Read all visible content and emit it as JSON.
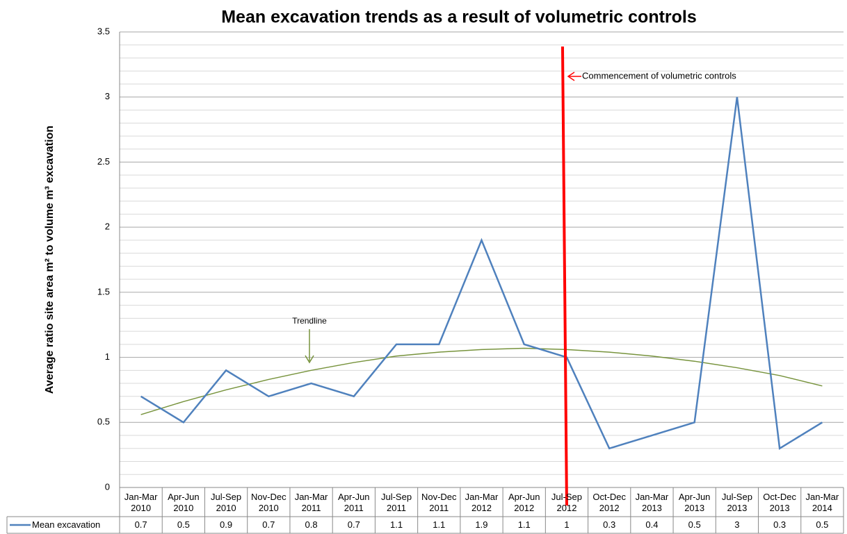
{
  "chart_data": {
    "type": "line",
    "title": "Mean excavation trends as a result of volumetric controls",
    "y_label": "Average ratio site area m² to volume m³ excavation",
    "categories": [
      "Jan-Mar 2010",
      "Apr-Jun 2010",
      "Jul-Sep 2010",
      "Nov-Dec 2010",
      "Jan-Mar 2011",
      "Apr-Jun 2011",
      "Jul-Sep 2011",
      "Nov-Dec 2011",
      "Jan-Mar 2012",
      "Apr-Jun 2012",
      "Jul-Sep 2012",
      "Oct-Dec 2012",
      "Jan-Mar 2013",
      "Apr-Jun 2013",
      "Jul-Sep 2013",
      "Oct-Dec 2013",
      "Jan-Mar 2014"
    ],
    "series": [
      {
        "name": "Mean excavation",
        "color": "#4f81bd",
        "values": [
          0.7,
          0.5,
          0.9,
          0.7,
          0.8,
          0.7,
          1.1,
          1.1,
          1.9,
          1.1,
          1,
          0.3,
          0.4,
          0.5,
          3,
          0.3,
          0.5
        ]
      }
    ],
    "trendline": {
      "label": "Trendline",
      "color": "#77933c",
      "values": [
        0.56,
        0.66,
        0.75,
        0.83,
        0.9,
        0.96,
        1.01,
        1.04,
        1.06,
        1.07,
        1.06,
        1.04,
        1.01,
        0.97,
        0.92,
        0.86,
        0.78
      ]
    },
    "marker": {
      "text": "Commencement of volumetric controls",
      "category_index": 10,
      "color": "#ff0000"
    },
    "ylim": [
      0,
      3.5
    ],
    "yticks": [
      0,
      0.5,
      1,
      1.5,
      2,
      2.5,
      3,
      3.5
    ],
    "yminorticks": [
      0.1,
      0.2,
      0.3,
      0.4,
      0.6,
      0.7,
      0.8,
      0.9,
      1.1,
      1.2,
      1.3,
      1.4,
      1.6,
      1.7,
      1.8,
      1.9,
      2.1,
      2.2,
      2.3,
      2.4,
      2.6,
      2.7,
      2.8,
      2.9,
      3.1,
      3.2,
      3.3,
      3.4
    ],
    "grid": true
  }
}
